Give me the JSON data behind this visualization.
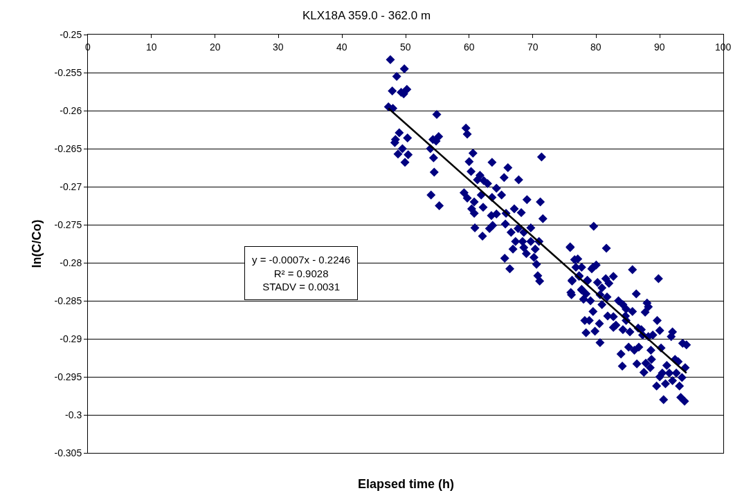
{
  "chart_data": {
    "type": "scatter",
    "title": "KLX18A 359.0 - 362.0 m",
    "xlabel": "Elapsed time (h)",
    "ylabel": "ln(C/Co)",
    "xlim": [
      0,
      100
    ],
    "xticks": [
      0,
      10,
      20,
      30,
      40,
      50,
      60,
      70,
      80,
      90,
      100
    ],
    "ylim": [
      -0.305,
      -0.25
    ],
    "yticks": [
      -0.25,
      -0.255,
      -0.26,
      -0.265,
      -0.27,
      -0.275,
      -0.28,
      -0.285,
      -0.29,
      -0.295,
      -0.3,
      -0.305
    ],
    "grid": "y",
    "marker": "diamond",
    "annotations": [
      "y = -0.0007x - 0.2246",
      "R² = 0.9028",
      "STADV = 0.0031"
    ],
    "series": [
      {
        "color": "#000080",
        "x": [
          47.6,
          49.8,
          48.6,
          47.9,
          49.3,
          49.7,
          50.2,
          47.3,
          48.0,
          54.9,
          59.5,
          59.7,
          49.0,
          48.4,
          48.3,
          50.3,
          54.3,
          55.2,
          54.8,
          53.9,
          54.4,
          54.5,
          54.0,
          55.3,
          49.5,
          48.8,
          50.4,
          49.9,
          60.6,
          60.0,
          60.3,
          63.6,
          66.1,
          65.5,
          67.8,
          61.7,
          61.3,
          62.3,
          62.9,
          61.9,
          59.2,
          59.7,
          60.8,
          60.4,
          60.8,
          63.6,
          64.3,
          65.1,
          62.2,
          63.5,
          64.3,
          65.8,
          67.1,
          68.2,
          69.1,
          71.4,
          71.2,
          71.6,
          60.9,
          62.1,
          63.2,
          63.7,
          65.7,
          66.6,
          67.7,
          68.6,
          69.7,
          67.3,
          66.9,
          68.6,
          69.0,
          70.4,
          71.0,
          68.4,
          69.7,
          65.6,
          66.4,
          70.2,
          70.6,
          70.8,
          71.1,
          75.9,
          76.6,
          77.1,
          76.8,
          77.7,
          77.3,
          78.6,
          76.2,
          79.3,
          76.0,
          77.7,
          78.4,
          79.6,
          75.9,
          81.6,
          85.7,
          89.8,
          82.7,
          79.5,
          80.0,
          76.2,
          77.3,
          78.6,
          81.5,
          82.0,
          80.2,
          80.9,
          76.1,
          77.7,
          78.0,
          79.1,
          80.6,
          81.7,
          86.3,
          83.5,
          84.2,
          84.7,
          79.5,
          80.9,
          81.8,
          82.7,
          85.7,
          87.7,
          88.2,
          88.0,
          78.2,
          78.9,
          80.5,
          78.4,
          79.8,
          80.6,
          82.7,
          83.1,
          84.6,
          84.2,
          84.7,
          85.3,
          86.6,
          87.1,
          87.3,
          89.6,
          90.0,
          92.0,
          91.8,
          88.2,
          88.9,
          85.1,
          86.0,
          86.7,
          88.6,
          90.2,
          93.6,
          94.2,
          83.9,
          84.1,
          86.4,
          87.5,
          87.8,
          88.7,
          88.5,
          91.1,
          92.4,
          92.9,
          94.0,
          93.5,
          90.4,
          91.5,
          92.6,
          90.0,
          90.9,
          92.0,
          93.1,
          89.5,
          90.6,
          93.3,
          93.9
        ],
        "values": [
          -0.2533,
          -0.2545,
          -0.2555,
          -0.2574,
          -0.2576,
          -0.2578,
          -0.2572,
          -0.2595,
          -0.2597,
          -0.2605,
          -0.2623,
          -0.2631,
          -0.2629,
          -0.2638,
          -0.2642,
          -0.2636,
          -0.2638,
          -0.2634,
          -0.264,
          -0.265,
          -0.2662,
          -0.2681,
          -0.2711,
          -0.2725,
          -0.265,
          -0.2657,
          -0.2658,
          -0.2668,
          -0.2656,
          -0.2667,
          -0.268,
          -0.2668,
          -0.2675,
          -0.2688,
          -0.2691,
          -0.2685,
          -0.2691,
          -0.2692,
          -0.2696,
          -0.2711,
          -0.2708,
          -0.2715,
          -0.272,
          -0.2729,
          -0.2735,
          -0.2714,
          -0.2702,
          -0.2711,
          -0.2727,
          -0.2738,
          -0.2736,
          -0.2735,
          -0.2729,
          -0.2734,
          -0.2717,
          -0.2661,
          -0.272,
          -0.2742,
          -0.2754,
          -0.2765,
          -0.2755,
          -0.2751,
          -0.2749,
          -0.276,
          -0.2755,
          -0.276,
          -0.2754,
          -0.2772,
          -0.2782,
          -0.278,
          -0.2788,
          -0.2782,
          -0.2772,
          -0.2772,
          -0.2772,
          -0.2794,
          -0.2808,
          -0.2793,
          -0.2802,
          -0.2817,
          -0.2824,
          -0.2779,
          -0.2796,
          -0.2795,
          -0.2806,
          -0.2806,
          -0.2817,
          -0.2823,
          -0.2823,
          -0.2808,
          -0.2839,
          -0.2835,
          -0.2841,
          -0.2752,
          -0.278,
          -0.2781,
          -0.2809,
          -0.2821,
          -0.2818,
          -0.2806,
          -0.2803,
          -0.2824,
          -0.2818,
          -0.2824,
          -0.2821,
          -0.2827,
          -0.2826,
          -0.2833,
          -0.2842,
          -0.2836,
          -0.2848,
          -0.285,
          -0.2842,
          -0.2845,
          -0.2841,
          -0.285,
          -0.2855,
          -0.2861,
          -0.2864,
          -0.2855,
          -0.287,
          -0.2871,
          -0.2864,
          -0.2865,
          -0.2858,
          -0.2853,
          -0.2876,
          -0.2876,
          -0.288,
          -0.2892,
          -0.289,
          -0.2905,
          -0.2885,
          -0.2882,
          -0.287,
          -0.2888,
          -0.2876,
          -0.2891,
          -0.2886,
          -0.2888,
          -0.2895,
          -0.2876,
          -0.2889,
          -0.2891,
          -0.2897,
          -0.2897,
          -0.2895,
          -0.2911,
          -0.2915,
          -0.2911,
          -0.2915,
          -0.2912,
          -0.2906,
          -0.2908,
          -0.292,
          -0.2936,
          -0.2933,
          -0.2944,
          -0.2932,
          -0.2927,
          -0.2938,
          -0.2935,
          -0.2927,
          -0.293,
          -0.2938,
          -0.2951,
          -0.2945,
          -0.2945,
          -0.2945,
          -0.295,
          -0.2959,
          -0.2955,
          -0.2962,
          -0.2962,
          -0.298,
          -0.2977,
          -0.2982
        ]
      },
      {
        "type": "line",
        "color": "#000000",
        "marker": "none",
        "x": [
          47.3,
          94.2
        ],
        "values": [
          -0.2597,
          -0.2945
        ]
      }
    ]
  }
}
